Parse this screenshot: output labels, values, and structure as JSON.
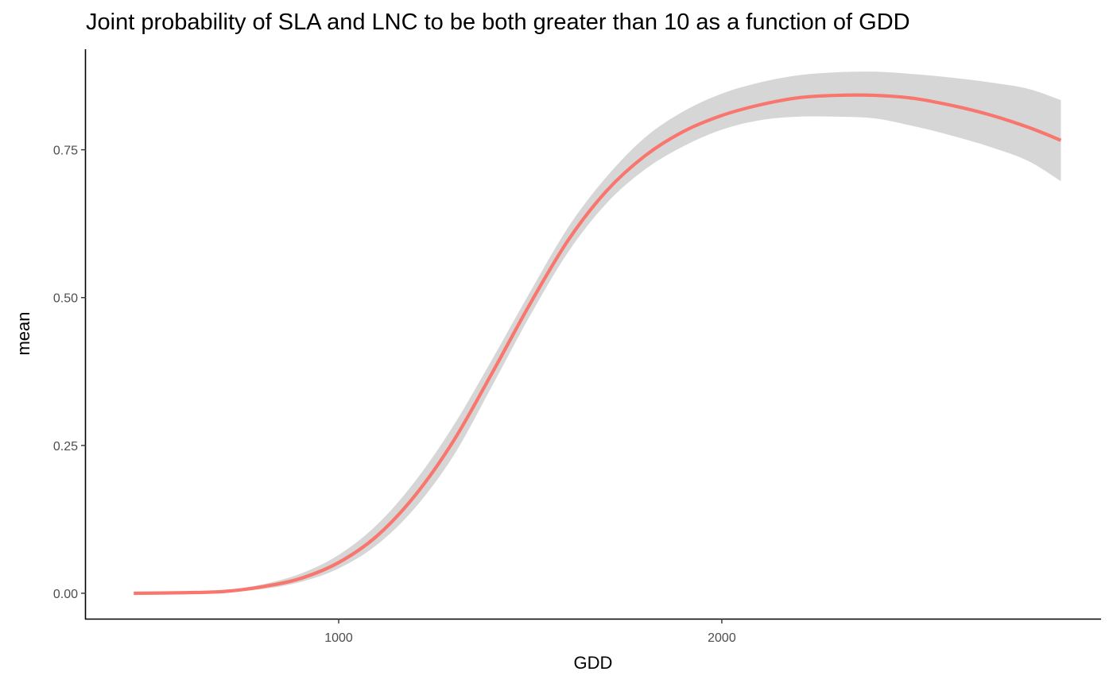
{
  "chart_data": {
    "type": "line",
    "title": "Joint probability of SLA and LNC to be both greater than 10 as a function of GDD",
    "xlabel": "GDD",
    "ylabel": "mean",
    "xlim": [
      340,
      2990
    ],
    "ylim": [
      -0.043,
      0.92
    ],
    "x_ticks": [
      1000,
      2000
    ],
    "x_tick_labels": [
      "1000",
      "2000"
    ],
    "y_ticks": [
      0.0,
      0.25,
      0.5,
      0.75
    ],
    "y_tick_labels": [
      "0.00",
      "0.25",
      "0.50",
      "0.75"
    ],
    "grid": false,
    "legend": "none",
    "colors": {
      "line": "#F8766D",
      "ribbon": "#D6D6D6",
      "axis": "#000000"
    },
    "series": [
      {
        "x": [
          465,
          600,
          700,
          800,
          900,
          1000,
          1100,
          1200,
          1300,
          1400,
          1500,
          1600,
          1700,
          1800,
          1900,
          2000,
          2100,
          2200,
          2300,
          2400,
          2500,
          2600,
          2700,
          2800,
          2885
        ],
        "y": [
          0.0,
          0.001,
          0.003,
          0.011,
          0.025,
          0.052,
          0.097,
          0.166,
          0.258,
          0.372,
          0.49,
          0.598,
          0.681,
          0.74,
          0.781,
          0.808,
          0.826,
          0.838,
          0.842,
          0.842,
          0.837,
          0.825,
          0.809,
          0.788,
          0.766
        ],
        "lower": [
          0.0,
          0.0,
          0.002,
          0.007,
          0.019,
          0.042,
          0.082,
          0.145,
          0.233,
          0.35,
          0.47,
          0.578,
          0.66,
          0.717,
          0.756,
          0.784,
          0.8,
          0.806,
          0.806,
          0.803,
          0.79,
          0.774,
          0.755,
          0.731,
          0.697
        ],
        "upper": [
          0.0,
          0.002,
          0.005,
          0.015,
          0.033,
          0.065,
          0.116,
          0.19,
          0.284,
          0.395,
          0.51,
          0.62,
          0.705,
          0.771,
          0.815,
          0.845,
          0.864,
          0.876,
          0.881,
          0.882,
          0.878,
          0.872,
          0.864,
          0.853,
          0.834
        ]
      }
    ]
  }
}
